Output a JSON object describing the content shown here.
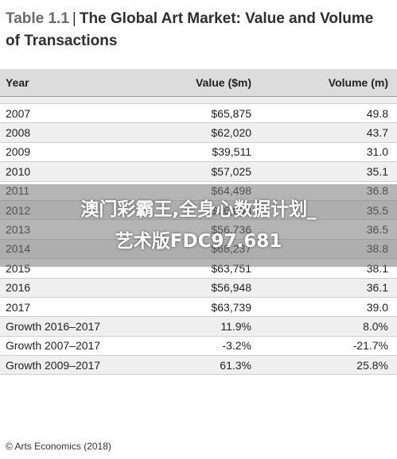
{
  "title": {
    "prefix": "Table 1.1",
    "separator": "|",
    "main": "The Global Art Market: Value and Volume of Transactions"
  },
  "columns": [
    "Year",
    "Value ($m)",
    "Volume (m)"
  ],
  "rows": [
    [
      "2007",
      "$65,875",
      "49.8"
    ],
    [
      "2008",
      "$62,020",
      "43.7"
    ],
    [
      "2009",
      "$39,511",
      "31.0"
    ],
    [
      "2010",
      "$57,025",
      "35.1"
    ],
    [
      "2011",
      "$64,498",
      "36.8"
    ],
    [
      "2012",
      "$56,698",
      "35.5"
    ],
    [
      "2013",
      "$56,736",
      "36.5"
    ],
    [
      "2014",
      "$68,237",
      "38.8"
    ],
    [
      "2015",
      "$63,751",
      "38.1"
    ],
    [
      "2016",
      "$56,948",
      "36.1"
    ],
    [
      "2017",
      "$63,739",
      "39.0"
    ],
    [
      "Growth 2016–2017",
      "11.9%",
      "8.0%"
    ],
    [
      "Growth 2007–2017",
      "-3.2%",
      "-21.7%"
    ],
    [
      "Growth 2009–2017",
      "61.3%",
      "25.8%"
    ]
  ],
  "footer": "© Arts Economics (2018)",
  "overlay": {
    "line1": "澳门彩霸王,全身心数据计划_",
    "line2": "艺术版FDC97.681"
  }
}
